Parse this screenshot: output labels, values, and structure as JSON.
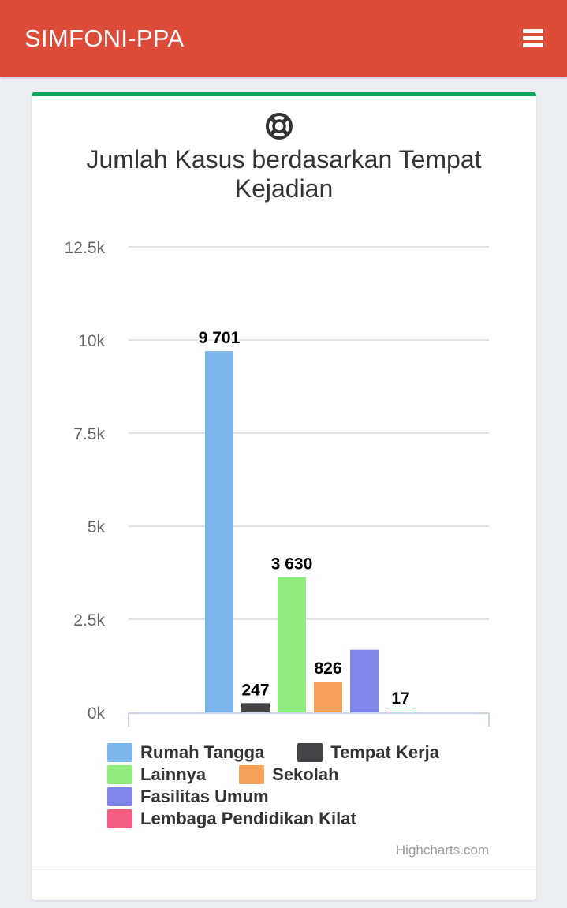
{
  "header": {
    "brand": "SIMFONI-PPA",
    "menu_icon": "hamburger-menu-icon",
    "background_color": "#dd4b39"
  },
  "card": {
    "accent_color": "#00a65a",
    "icon": "life-ring-icon",
    "title": "Jumlah Kasus berdasarkan Tempat Kejadian",
    "credits": "Highcharts.com"
  },
  "chart_data": {
    "type": "bar",
    "title": "Jumlah Kasus berdasarkan Tempat Kejadian",
    "xlabel": "",
    "ylabel": "",
    "ylim": [
      0,
      12500
    ],
    "yticks": [
      "0k",
      "2.5k",
      "5k",
      "7.5k",
      "10k",
      "12.5k"
    ],
    "ytick_values": [
      0,
      2500,
      5000,
      7500,
      10000,
      12500
    ],
    "grid": true,
    "legend_position": "bottom",
    "series": [
      {
        "name": "Rumah Tangga",
        "value": 9701,
        "label": "9 701",
        "color": "#7cb5ec"
      },
      {
        "name": "Tempat Kerja",
        "value": 247,
        "label": "247",
        "color": "#434348"
      },
      {
        "name": "Lainnya",
        "value": 3630,
        "label": "3 630",
        "color": "#90ed7d"
      },
      {
        "name": "Sekolah",
        "value": 826,
        "label": "826",
        "color": "#f7a35c"
      },
      {
        "name": "Fasilitas Umum",
        "value": 1680,
        "label": "",
        "color": "#8085e9"
      },
      {
        "name": "Lembaga Pendidikan Kilat",
        "value": 17,
        "label": "17",
        "color": "#f15c80"
      }
    ]
  }
}
